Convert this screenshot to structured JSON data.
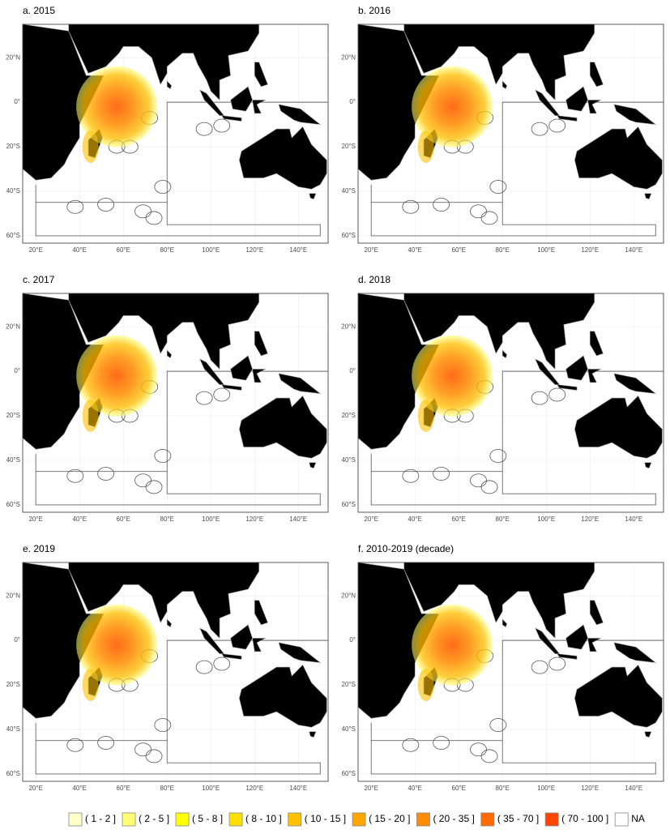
{
  "panels": [
    {
      "title": "a. 2015"
    },
    {
      "title": "b. 2016"
    },
    {
      "title": "c. 2017"
    },
    {
      "title": "d. 2018"
    },
    {
      "title": "e. 2019"
    },
    {
      "title": "f. 2010-2019 (decade)"
    }
  ],
  "lonlim": [
    14,
    153.6
  ],
  "latlim": [
    -63.3,
    35
  ],
  "lonticks": [
    {
      "value": 20,
      "label": "20°E"
    },
    {
      "value": 40,
      "label": "40°E"
    },
    {
      "value": 60,
      "label": "60°E"
    },
    {
      "value": 80,
      "label": "80°E"
    },
    {
      "value": 100,
      "label": "100°E"
    },
    {
      "value": 120,
      "label": "120°E"
    },
    {
      "value": 140,
      "label": "140°E"
    }
  ],
  "latticks": [
    {
      "value": 20,
      "label": "20°N"
    },
    {
      "value": 0,
      "label": "0°"
    },
    {
      "value": -20,
      "label": "20°S"
    },
    {
      "value": -40,
      "label": "40°S"
    },
    {
      "value": -60,
      "label": "60°S"
    }
  ],
  "legend": [
    {
      "label": "( 1 - 2 ]",
      "color": "#ffffcc"
    },
    {
      "label": "( 2 - 5 ]",
      "color": "#ffff73"
    },
    {
      "label": "( 5 - 8 ]",
      "color": "#ffff00"
    },
    {
      "label": "( 8 - 10 ]",
      "color": "#ffdf00"
    },
    {
      "label": "( 10 - 15 ]",
      "color": "#ffc000"
    },
    {
      "label": "( 15 - 20 ]",
      "color": "#ffa500"
    },
    {
      "label": "( 20 - 35 ]",
      "color": "#ff8c00"
    },
    {
      "label": "( 35 - 70 ]",
      "color": "#ff6a00"
    },
    {
      "label": "( 70 - 100 ]",
      "color": "#ff4500"
    },
    {
      "label": "NA",
      "color": "#ffffff"
    }
  ]
}
